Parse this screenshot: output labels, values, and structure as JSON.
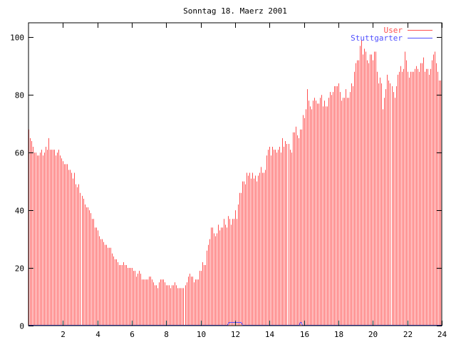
{
  "chart_data": {
    "type": "bar",
    "title": "Sonntag 18. Maerz 2001",
    "xlabel": "",
    "ylabel": "",
    "xlim": [
      0,
      24
    ],
    "ylim": [
      0,
      105
    ],
    "x_step_hours": 0.083333,
    "xticks": [
      2,
      4,
      6,
      8,
      10,
      12,
      14,
      16,
      18,
      20,
      22,
      24
    ],
    "yticks": [
      0,
      20,
      40,
      60,
      80,
      100
    ],
    "grid": false,
    "legend_position": "top-right",
    "colors": {
      "user": "#ff5050",
      "stuttgarter": "#5050ff",
      "frame": "#000000"
    },
    "series": [
      {
        "name": "User",
        "style": "impulses",
        "values": [
          68,
          65,
          64,
          62,
          60,
          60,
          59,
          59,
          60,
          61,
          59,
          60,
          62,
          61,
          65,
          61,
          61,
          61,
          61,
          59,
          60,
          61,
          59,
          58,
          57,
          56,
          56,
          56,
          54,
          54,
          53,
          51,
          53,
          49,
          48,
          49,
          46,
          45,
          44,
          42,
          41,
          41,
          40,
          39,
          37,
          37,
          34,
          34,
          33,
          31,
          30,
          30,
          29,
          28,
          28,
          27,
          27,
          27,
          25,
          24,
          23,
          23,
          22,
          21,
          21,
          21,
          22,
          21,
          21,
          20,
          20,
          20,
          20,
          19,
          19,
          17,
          18,
          19,
          18,
          16,
          16,
          16,
          16,
          16,
          17,
          17,
          16,
          15,
          14,
          14,
          13,
          15,
          16,
          16,
          16,
          15,
          14,
          14,
          14,
          13,
          14,
          14,
          15,
          14,
          13,
          13,
          13,
          13,
          13,
          14,
          15,
          17,
          18,
          17,
          17,
          15,
          16,
          16,
          16,
          19,
          19,
          22,
          21,
          21,
          26,
          28,
          30,
          34,
          34,
          32,
          31,
          32,
          35,
          33,
          34,
          34,
          37,
          35,
          34,
          38,
          37,
          35,
          37,
          37,
          40,
          37,
          42,
          46,
          46,
          50,
          50,
          49,
          53,
          52,
          53,
          51,
          53,
          51,
          52,
          50,
          52,
          53,
          55,
          53,
          53,
          54,
          59,
          61,
          62,
          59,
          62,
          61,
          61,
          60,
          61,
          62,
          60,
          65,
          62,
          64,
          63,
          63,
          61,
          60,
          67,
          67,
          69,
          66,
          65,
          68,
          68,
          73,
          72,
          75,
          82,
          78,
          76,
          75,
          78,
          79,
          78,
          77,
          77,
          79,
          80,
          76,
          78,
          76,
          76,
          79,
          81,
          80,
          81,
          83,
          83,
          83,
          84,
          81,
          78,
          79,
          79,
          82,
          79,
          79,
          81,
          84,
          83,
          88,
          91,
          92,
          92,
          97,
          99,
          94,
          96,
          95,
          92,
          91,
          94,
          94,
          92,
          95,
          95,
          88,
          84,
          86,
          84,
          75,
          79,
          82,
          87,
          85,
          84,
          83,
          81,
          79,
          83,
          87,
          88,
          90,
          88,
          89,
          95,
          92,
          88,
          86,
          88,
          88,
          88,
          89,
          90,
          89,
          88,
          91,
          91,
          93,
          88,
          89,
          89,
          87,
          89,
          92,
          94,
          95,
          91,
          88,
          85,
          85
        ]
      },
      {
        "name": "Stuttgarter",
        "style": "lines",
        "x": [
          0,
          11.55,
          11.65,
          12.35,
          12.45,
          15.72,
          15.78,
          15.84,
          15.9,
          24
        ],
        "y": [
          0,
          0,
          1,
          1,
          0,
          0,
          1,
          1,
          0,
          0
        ]
      }
    ]
  }
}
